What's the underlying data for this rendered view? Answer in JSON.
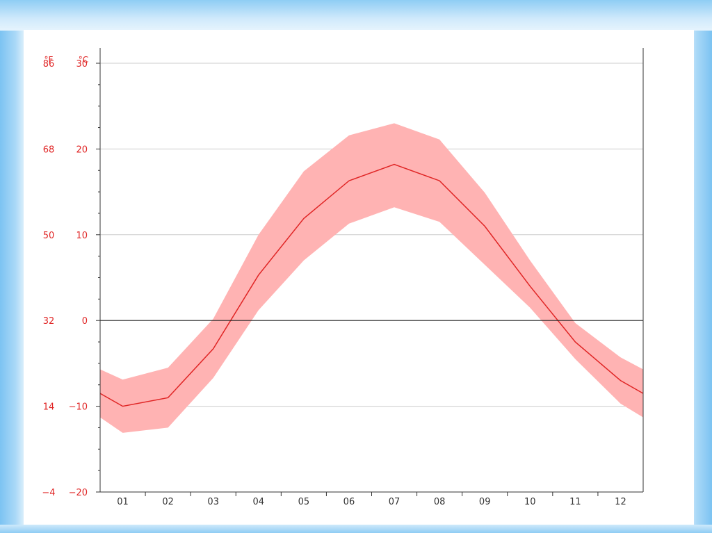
{
  "chart_data": {
    "type": "area",
    "categories": [
      "01",
      "02",
      "03",
      "04",
      "05",
      "06",
      "07",
      "08",
      "09",
      "10",
      "11",
      "12"
    ],
    "y_unit_label": "°C",
    "y2_unit_label": "°F",
    "ylim": [
      -20,
      30
    ],
    "yticks_c": [
      "30",
      "20",
      "10",
      "0",
      "−10",
      "−20"
    ],
    "yticks_f": [
      "86",
      "68",
      "50",
      "32",
      "14",
      "−4"
    ],
    "grid": true,
    "series": [
      {
        "type": "line",
        "x": [
          0.0,
          0.5,
          1.5,
          2.5,
          3.5,
          4.5,
          5.5,
          6.5,
          7.5,
          8.5,
          9.5,
          10.5,
          11.5,
          12.0
        ],
        "values": [
          -8.5,
          -10.0,
          -9.0,
          -3.3,
          5.3,
          11.9,
          16.3,
          18.2,
          16.3,
          11.0,
          4.0,
          -2.5,
          -7.0,
          -8.5
        ]
      },
      {
        "type": "band",
        "x": [
          0.0,
          0.5,
          1.5,
          2.5,
          3.5,
          4.5,
          5.5,
          6.5,
          7.5,
          8.5,
          9.5,
          10.5,
          11.5,
          12.0
        ],
        "upper": [
          -5.7,
          -6.9,
          -5.5,
          0.2,
          10.0,
          17.4,
          21.6,
          23.0,
          21.1,
          14.9,
          7.0,
          -0.3,
          -4.3,
          -5.7
        ],
        "lower": [
          -11.3,
          -13.1,
          -12.5,
          -6.7,
          1.2,
          7.0,
          11.3,
          13.2,
          11.5,
          6.5,
          1.5,
          -4.5,
          -9.7,
          -11.3
        ]
      }
    ],
    "colors": {
      "band": "#ffb3b3",
      "line": "#e02525",
      "label": "#e02525",
      "axis": "#333333",
      "grid": "#cccccc",
      "zero": "#222222"
    }
  }
}
